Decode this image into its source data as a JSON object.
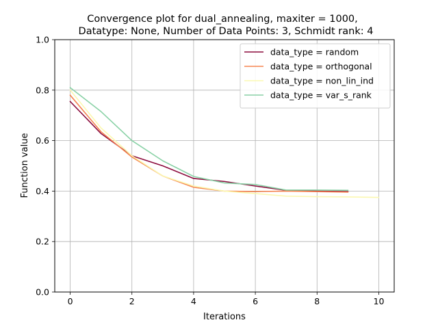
{
  "chart_data": {
    "type": "line",
    "title_line1": "Convergence plot for dual_annealing, maxiter = 1000,",
    "title_line2": "Datatype: None, Number of Data Points: 3, Schmidt rank: 4",
    "xlabel": "Iterations",
    "ylabel": "Function value",
    "xlim": [
      -0.5,
      10.5
    ],
    "ylim": [
      0,
      1
    ],
    "xticks": [
      0,
      2,
      4,
      6,
      8,
      10
    ],
    "yticks": [
      0.0,
      0.2,
      0.4,
      0.6,
      0.8,
      1.0
    ],
    "xtick_labels": [
      "0",
      "2",
      "4",
      "6",
      "8",
      "10"
    ],
    "ytick_labels": [
      "0.0",
      "0.2",
      "0.4",
      "0.6",
      "0.8",
      "1.0"
    ],
    "grid": true,
    "legend_position": "top-right",
    "series": [
      {
        "name": "data_type = random",
        "color": "#8b0a3c",
        "x": [
          0,
          1,
          2,
          3,
          4,
          5,
          6,
          7,
          8,
          9
        ],
        "y": [
          0.755,
          0.628,
          0.54,
          0.5,
          0.45,
          0.438,
          0.42,
          0.403,
          0.4,
          0.398
        ]
      },
      {
        "name": "data_type = orthogonal",
        "color": "#f5834f",
        "x": [
          0,
          1,
          2,
          3,
          4,
          5,
          6,
          7,
          8,
          9
        ],
        "y": [
          0.78,
          0.635,
          0.535,
          0.46,
          0.415,
          0.4,
          0.398,
          0.4,
          0.398,
          0.396
        ]
      },
      {
        "name": "data_type = non_lin_ind",
        "color": "#fbf8b0",
        "x": [
          0,
          1,
          2,
          3,
          4,
          5,
          6,
          7,
          8,
          9,
          10
        ],
        "y": [
          0.8,
          0.65,
          0.54,
          0.46,
          0.42,
          0.4,
          0.39,
          0.38,
          0.378,
          0.377,
          0.375
        ]
      },
      {
        "name": "data_type = var_s_rank",
        "color": "#88d1a5",
        "x": [
          0,
          1,
          2,
          3,
          4,
          5,
          6,
          7,
          8,
          9
        ],
        "y": [
          0.81,
          0.715,
          0.6,
          0.52,
          0.458,
          0.432,
          0.426,
          0.404,
          0.404,
          0.403
        ]
      }
    ]
  }
}
